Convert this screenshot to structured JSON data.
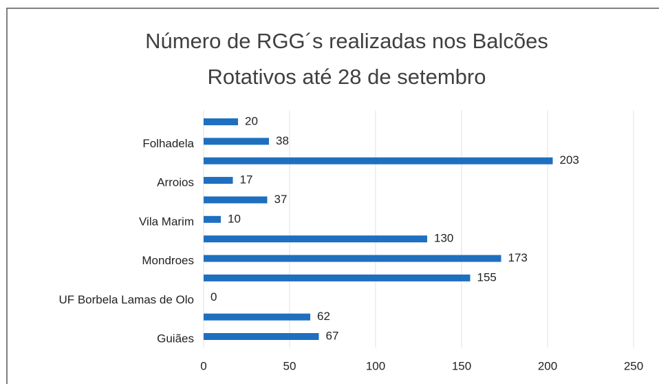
{
  "chart_data": {
    "type": "barh",
    "title": "Número de RGG´s realizadas nos Balcões Rotativos até 28 de setembro",
    "categories": [
      null,
      "Folhadela",
      null,
      "Arroios",
      null,
      "Vila Marim",
      null,
      "Mondroes",
      null,
      "UF Borbela Lamas de Olo",
      null,
      "Guiães"
    ],
    "values": [
      20,
      38,
      203,
      17,
      37,
      10,
      130,
      173,
      155,
      0,
      62,
      67
    ],
    "color": "#1f6fc0",
    "xlim": [
      0,
      250
    ],
    "xticks": [
      0,
      50,
      100,
      150,
      200,
      250
    ],
    "grid": true
  }
}
